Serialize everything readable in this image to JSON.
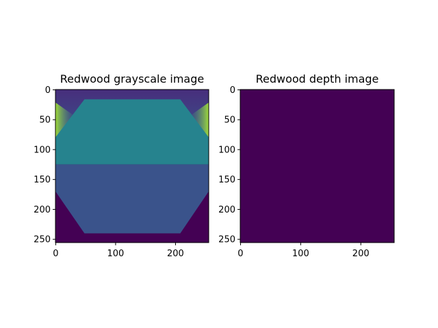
{
  "chart_data": [
    {
      "type": "image",
      "title": "Redwood grayscale image",
      "xlim": [
        -0.5,
        255.5
      ],
      "ylim": [
        255.5,
        -0.5
      ],
      "xticks": [
        0,
        100,
        200
      ],
      "yticks": [
        0,
        50,
        100,
        150,
        200,
        250
      ]
    },
    {
      "type": "image",
      "title": "Redwood depth image",
      "xlim": [
        -0.5,
        255.5
      ],
      "ylim": [
        255.5,
        -0.5
      ],
      "xticks": [
        0,
        100,
        200
      ],
      "yticks": [
        0,
        50,
        100,
        150,
        200,
        250
      ]
    }
  ]
}
